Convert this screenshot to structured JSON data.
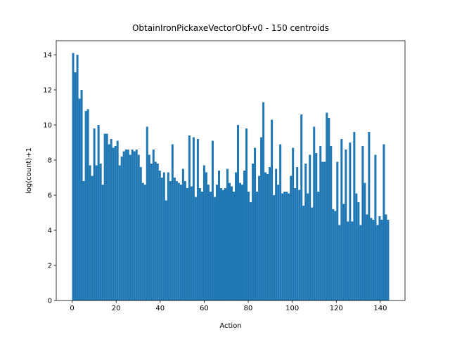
{
  "chart_data": {
    "type": "histogram",
    "title": "ObtainIronPickaxeVectorObf-v0 - 150 centroids",
    "x_label": "Action",
    "y_label": "log(count)+1",
    "color": "#1f77b4",
    "bins": [
      0,
      0.96,
      1.92,
      2.88,
      3.84,
      4.8,
      5.76,
      6.72,
      7.68,
      8.64,
      9.6,
      10.56,
      11.52,
      12.48,
      13.44,
      14.4,
      15.36,
      16.32,
      17.28,
      18.24,
      19.2,
      20.16,
      21.12,
      22.08,
      23.04,
      24,
      24.96,
      25.92,
      26.88,
      27.84,
      28.8,
      29.76,
      30.72,
      31.68,
      32.64,
      33.6,
      34.56,
      35.52,
      36.48,
      37.44,
      38.4,
      39.36,
      40.32,
      41.28,
      42.24,
      43.2,
      44.16,
      45.12,
      46.08,
      47.04,
      48,
      48.96,
      49.92,
      50.88,
      51.84,
      52.8,
      53.76,
      54.72,
      55.68,
      56.64,
      57.6,
      58.56,
      59.52,
      60.48,
      61.44,
      62.4,
      63.36,
      64.32,
      65.28,
      66.24,
      67.2,
      68.16,
      69.12,
      70.08,
      71.04,
      72,
      72.96,
      73.92,
      74.88,
      75.84,
      76.8,
      77.76,
      78.72,
      79.68,
      80.64,
      81.6,
      82.56,
      83.52,
      84.48,
      85.44,
      86.4,
      87.36,
      88.32,
      89.28,
      90.24,
      91.2,
      92.16,
      93.12,
      94.08,
      95.04,
      96,
      96.96,
      97.92,
      98.88,
      99.84,
      100.8,
      101.76,
      102.72,
      103.68,
      104.64,
      105.6,
      106.56,
      107.52,
      108.48,
      109.44,
      110.4,
      111.36,
      112.32,
      113.28,
      114.24,
      115.2,
      116.16,
      117.12,
      118.08,
      119.04,
      120,
      120.96,
      121.92,
      122.88,
      123.84,
      124.8,
      125.76,
      126.72,
      127.68,
      128.64,
      129.6,
      130.56,
      131.52,
      132.48,
      133.44,
      134.4,
      135.36,
      136.32,
      137.28,
      138.24,
      139.2,
      140.16,
      141.12,
      142.08,
      143.04,
      144
    ],
    "values": [
      14.1,
      13.0,
      14.0,
      11.5,
      12.0,
      6.8,
      10.8,
      10.9,
      7.7,
      7.1,
      9.8,
      7.7,
      10.0,
      7.8,
      6.6,
      9.5,
      9.5,
      8.9,
      9.2,
      8.7,
      8.8,
      9.1,
      7.7,
      8.2,
      8.5,
      8.6,
      8.6,
      8.3,
      8.6,
      8.5,
      8.6,
      8.3,
      7.6,
      6.7,
      6.6,
      9.9,
      8.3,
      7.8,
      8.6,
      7.9,
      7.8,
      7.4,
      7.0,
      7.3,
      5.7,
      7.3,
      6.8,
      8.9,
      7.0,
      6.8,
      6.7,
      6.6,
      7.5,
      6.8,
      6.4,
      9.4,
      6.5,
      9.3,
      5.9,
      9.2,
      6.4,
      6.2,
      7.7,
      7.3,
      6.6,
      6.2,
      9.1,
      5.9,
      6.6,
      7.4,
      6.4,
      6.3,
      6.4,
      7.5,
      6.7,
      6.5,
      6.2,
      7.3,
      10.0,
      6.7,
      6.6,
      7.4,
      9.8,
      6.2,
      5.6,
      7.8,
      8.7,
      6.2,
      7.1,
      9.3,
      11.3,
      7.3,
      7.2,
      7.6,
      10.3,
      6.0,
      7.5,
      6.6,
      8.9,
      6.1,
      6.2,
      6.2,
      6.1,
      7.1,
      8.7,
      6.4,
      7.6,
      6.3,
      10.6,
      5.4,
      7.8,
      6.1,
      8.3,
      5.3,
      9.9,
      8.4,
      6.2,
      8.8,
      7.9,
      7.9,
      10.7,
      10.4,
      8.8,
      5.2,
      5.1,
      7.9,
      4.3,
      9.2,
      5.5,
      8.6,
      4.5,
      9.0,
      4.5,
      9.6,
      6.1,
      5.6,
      4.3,
      8.8,
      6.7,
      4.9,
      9.6,
      4.7,
      4.6,
      8.3,
      4.3,
      4.8,
      4.6,
      8.9,
      4.9,
      4.6
    ],
    "xlim": [
      -7.2,
      151.2
    ],
    "ylim": [
      0,
      14.8
    ],
    "xticks": [
      0,
      20,
      40,
      60,
      80,
      100,
      120,
      140
    ],
    "yticks": [
      0,
      2,
      4,
      6,
      8,
      10,
      12,
      14
    ]
  }
}
